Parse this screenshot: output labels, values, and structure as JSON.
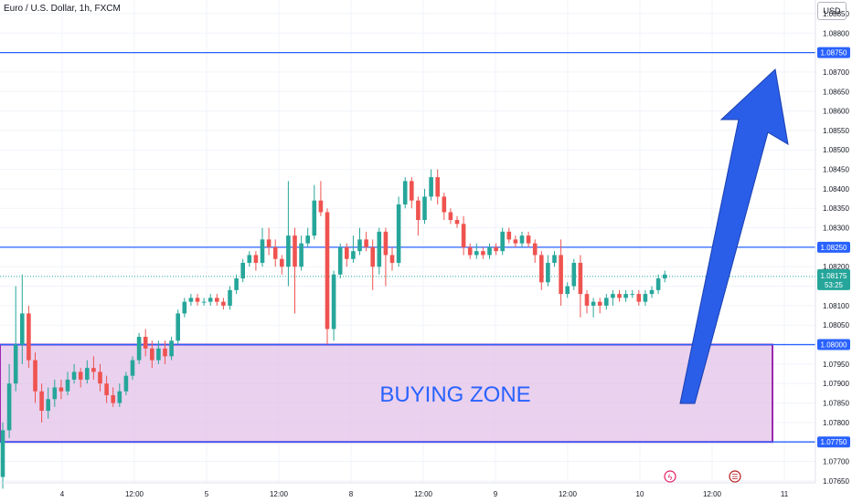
{
  "title": "Euro / U.S. Dollar, 1h, FXCM",
  "currency": "USD",
  "colors": {
    "up": "#26a69a",
    "down": "#ef5350",
    "line": "#2962ff",
    "zone_fill": "#e1bee7",
    "zone_border": "#9c27b0",
    "arrow": "#2a5ee8"
  },
  "events": [
    {
      "name": "lightning-bolt-icon",
      "glyph": "ϟ"
    },
    {
      "name": "us-flag-icon",
      "glyph": "☰"
    }
  ],
  "chart_data": {
    "type": "candlestick",
    "y_axis": {
      "range": [
        1.07645,
        1.08885
      ],
      "ticks": [
        "1.08850",
        "1.08800",
        "1.08750",
        "1.08700",
        "1.08650",
        "1.08600",
        "1.08550",
        "1.08500",
        "1.08450",
        "1.08400",
        "1.08350",
        "1.08300",
        "1.08250",
        "1.08200",
        "1.08150",
        "1.08100",
        "1.08050",
        "1.08000",
        "1.07950",
        "1.07900",
        "1.07850",
        "1.07800",
        "1.07750",
        "1.07700",
        "1.07650"
      ]
    },
    "x_axis": {
      "ticks": [
        "4",
        "12:00",
        "5",
        "12:00",
        "8",
        "12:00",
        "9",
        "12:00",
        "10",
        "12:00",
        "11"
      ]
    },
    "horizontal_lines": [
      1.0875,
      1.0825,
      1.08,
      1.0775
    ],
    "price_labels": [
      "1.08750",
      "1.08250",
      "1.08000",
      "1.07750"
    ],
    "current_price": {
      "value": "1.08175",
      "countdown": "53:25",
      "y": 1.08175
    },
    "zone": {
      "label": "BUYING ZONE",
      "from": 1.0775,
      "to": 1.08
    },
    "annotation_arrow": {
      "from_time": "10 12:00",
      "from_price": 1.0786,
      "to_price": 1.0875
    },
    "candles": [
      [
        1.0766,
        1.0778,
        1.0763,
        1.078
      ],
      [
        1.0778,
        1.079,
        1.0776,
        1.0795
      ],
      [
        1.079,
        1.08,
        1.0788,
        1.0815
      ],
      [
        1.08,
        1.0808,
        1.0795,
        1.0818
      ],
      [
        1.0808,
        1.0796,
        1.0794,
        1.081
      ],
      [
        1.0796,
        1.0788,
        1.0785,
        1.0798
      ],
      [
        1.0788,
        1.0783,
        1.078,
        1.079
      ],
      [
        1.0783,
        1.0786,
        1.0781,
        1.0789
      ],
      [
        1.0786,
        1.0789,
        1.0784,
        1.0791
      ],
      [
        1.0789,
        1.0788,
        1.0786,
        1.0791
      ],
      [
        1.0788,
        1.0791,
        1.0787,
        1.0793
      ],
      [
        1.0791,
        1.0793,
        1.079,
        1.0795
      ],
      [
        1.0793,
        1.0791,
        1.0789,
        1.0794
      ],
      [
        1.0791,
        1.0794,
        1.079,
        1.0796
      ],
      [
        1.0794,
        1.0793,
        1.0791,
        1.0797
      ],
      [
        1.0793,
        1.079,
        1.0788,
        1.0795
      ],
      [
        1.079,
        1.0787,
        1.0785,
        1.0792
      ],
      [
        1.0787,
        1.0785,
        1.0784,
        1.0789
      ],
      [
        1.0785,
        1.0788,
        1.0784,
        1.079
      ],
      [
        1.0788,
        1.0792,
        1.0787,
        1.0793
      ],
      [
        1.0792,
        1.0796,
        1.0791,
        1.0797
      ],
      [
        1.0796,
        1.0802,
        1.0795,
        1.0803
      ],
      [
        1.0802,
        1.0799,
        1.0797,
        1.0804
      ],
      [
        1.0799,
        1.0796,
        1.0794,
        1.0801
      ],
      [
        1.0796,
        1.0799,
        1.0795,
        1.0801
      ],
      [
        1.0799,
        1.0797,
        1.0795,
        1.0801
      ],
      [
        1.0797,
        1.0801,
        1.0796,
        1.0802
      ],
      [
        1.0801,
        1.0808,
        1.08,
        1.0809
      ],
      [
        1.0808,
        1.0811,
        1.0807,
        1.0812
      ],
      [
        1.0811,
        1.0812,
        1.081,
        1.0813
      ],
      [
        1.0812,
        1.0811,
        1.081,
        1.0813
      ],
      [
        1.0811,
        1.0811,
        1.081,
        1.0812
      ],
      [
        1.0811,
        1.0812,
        1.081,
        1.0813
      ],
      [
        1.0812,
        1.0811,
        1.081,
        1.0813
      ],
      [
        1.0811,
        1.081,
        1.0809,
        1.0812
      ],
      [
        1.081,
        1.0814,
        1.0809,
        1.0815
      ],
      [
        1.0814,
        1.0817,
        1.0813,
        1.0818
      ],
      [
        1.0817,
        1.0821,
        1.0816,
        1.0822
      ],
      [
        1.0821,
        1.0823,
        1.082,
        1.0824
      ],
      [
        1.0823,
        1.0821,
        1.0819,
        1.0824
      ],
      [
        1.0821,
        1.0827,
        1.082,
        1.083
      ],
      [
        1.0827,
        1.0825,
        1.0823,
        1.083
      ],
      [
        1.0825,
        1.0822,
        1.082,
        1.0827
      ],
      [
        1.0822,
        1.082,
        1.0818,
        1.0823
      ],
      [
        1.082,
        1.0828,
        1.0815,
        1.0842
      ],
      [
        1.0828,
        1.082,
        1.0808,
        1.083
      ],
      [
        1.082,
        1.0826,
        1.0819,
        1.0828
      ],
      [
        1.0826,
        1.0828,
        1.0825,
        1.083
      ],
      [
        1.0828,
        1.0837,
        1.0827,
        1.0841
      ],
      [
        1.0837,
        1.0834,
        1.0833,
        1.0842
      ],
      [
        1.0834,
        1.0804,
        1.08,
        1.0835
      ],
      [
        1.0804,
        1.0818,
        1.0801,
        1.0819
      ],
      [
        1.0818,
        1.0825,
        1.0817,
        1.0826
      ],
      [
        1.0825,
        1.0822,
        1.082,
        1.0826
      ],
      [
        1.0822,
        1.0824,
        1.0821,
        1.0828
      ],
      [
        1.0824,
        1.0827,
        1.0823,
        1.083
      ],
      [
        1.0827,
        1.0825,
        1.0824,
        1.0829
      ],
      [
        1.0825,
        1.082,
        1.0814,
        1.0827
      ],
      [
        1.082,
        1.0829,
        1.0818,
        1.083
      ],
      [
        1.0829,
        1.0823,
        1.0815,
        1.083
      ],
      [
        1.0823,
        1.0821,
        1.0819,
        1.0825
      ],
      [
        1.0821,
        1.0836,
        1.082,
        1.0838
      ],
      [
        1.0836,
        1.0842,
        1.0835,
        1.0843
      ],
      [
        1.0842,
        1.0837,
        1.0835,
        1.0843
      ],
      [
        1.0837,
        1.0832,
        1.0828,
        1.0838
      ],
      [
        1.0832,
        1.0838,
        1.0831,
        1.084
      ],
      [
        1.0838,
        1.0843,
        1.0837,
        1.0845
      ],
      [
        1.0843,
        1.0838,
        1.0836,
        1.0845
      ],
      [
        1.0838,
        1.0834,
        1.0832,
        1.0839
      ],
      [
        1.0834,
        1.0832,
        1.0831,
        1.0835
      ],
      [
        1.0832,
        1.0831,
        1.083,
        1.0833
      ],
      [
        1.0831,
        1.0825,
        1.0823,
        1.0833
      ],
      [
        1.0825,
        1.0823,
        1.0822,
        1.0826
      ],
      [
        1.0823,
        1.0824,
        1.0822,
        1.0826
      ],
      [
        1.0824,
        1.0823,
        1.0822,
        1.0825
      ],
      [
        1.0823,
        1.0825,
        1.0822,
        1.0826
      ],
      [
        1.0825,
        1.0824,
        1.0823,
        1.0826
      ],
      [
        1.0824,
        1.0829,
        1.0823,
        1.083
      ],
      [
        1.0829,
        1.0827,
        1.0826,
        1.083
      ],
      [
        1.0827,
        1.0826,
        1.0825,
        1.0828
      ],
      [
        1.0826,
        1.0828,
        1.0825,
        1.0829
      ],
      [
        1.0828,
        1.0826,
        1.0825,
        1.0829
      ],
      [
        1.0826,
        1.0823,
        1.0821,
        1.0827
      ],
      [
        1.0823,
        1.0816,
        1.0814,
        1.0824
      ],
      [
        1.0816,
        1.0821,
        1.0815,
        1.0823
      ],
      [
        1.0821,
        1.0823,
        1.082,
        1.0824
      ],
      [
        1.0823,
        1.0813,
        1.081,
        1.0827
      ],
      [
        1.0813,
        1.0815,
        1.0812,
        1.0816
      ],
      [
        1.0815,
        1.0821,
        1.0814,
        1.0822
      ],
      [
        1.0821,
        1.0813,
        1.0807,
        1.0823
      ],
      [
        1.0813,
        1.081,
        1.0808,
        1.0814
      ],
      [
        1.081,
        1.0811,
        1.0807,
        1.0812
      ],
      [
        1.0811,
        1.081,
        1.0808,
        1.0812
      ],
      [
        1.081,
        1.0812,
        1.0809,
        1.0813
      ],
      [
        1.0812,
        1.0813,
        1.081,
        1.0814
      ],
      [
        1.0813,
        1.0812,
        1.0811,
        1.0814
      ],
      [
        1.0812,
        1.0813,
        1.0811,
        1.0814
      ],
      [
        1.0813,
        1.0813,
        1.0812,
        1.0814
      ],
      [
        1.0813,
        1.0811,
        1.081,
        1.0814
      ],
      [
        1.0811,
        1.0813,
        1.081,
        1.0814
      ],
      [
        1.0813,
        1.0814,
        1.0812,
        1.0815
      ],
      [
        1.0814,
        1.0817,
        1.0813,
        1.0818
      ],
      [
        1.0817,
        1.0818,
        1.0816,
        1.0819
      ]
    ]
  }
}
